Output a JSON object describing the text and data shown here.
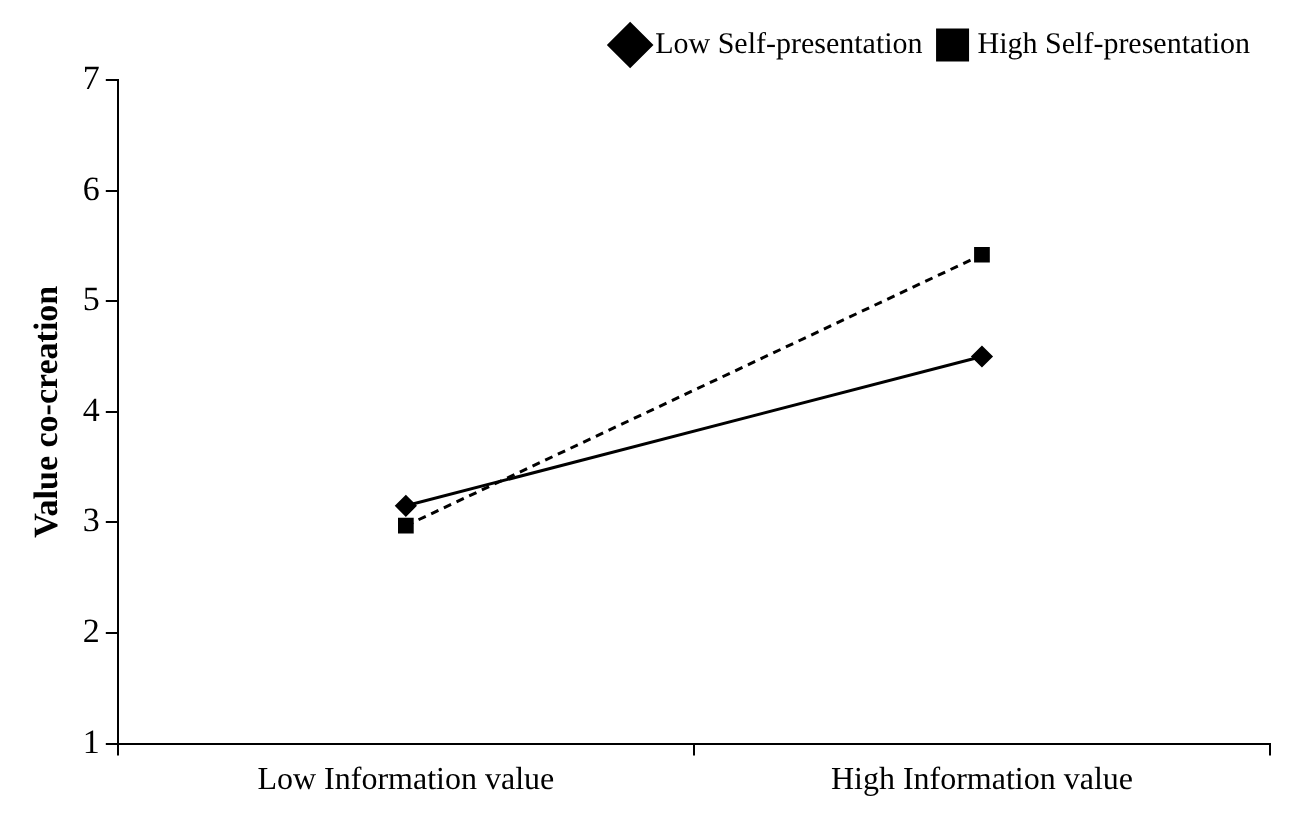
{
  "chart_data": {
    "type": "line",
    "ylabel": "Value co-creation",
    "categories": [
      "Low Information value",
      "High Information value"
    ],
    "series": [
      {
        "name": "Low Self-presentation",
        "color": "#000000",
        "values": [
          3.15,
          4.5
        ],
        "marker": "diamond",
        "line_style": "solid"
      },
      {
        "name": "High Self-presentation",
        "color": "#000000",
        "values": [
          2.97,
          5.42
        ],
        "marker": "square",
        "line_style": "dashed"
      }
    ],
    "ylim": [
      1,
      7
    ],
    "yticks": [
      1,
      2,
      3,
      4,
      5,
      6,
      7
    ],
    "grid": false,
    "legend": "top right"
  }
}
